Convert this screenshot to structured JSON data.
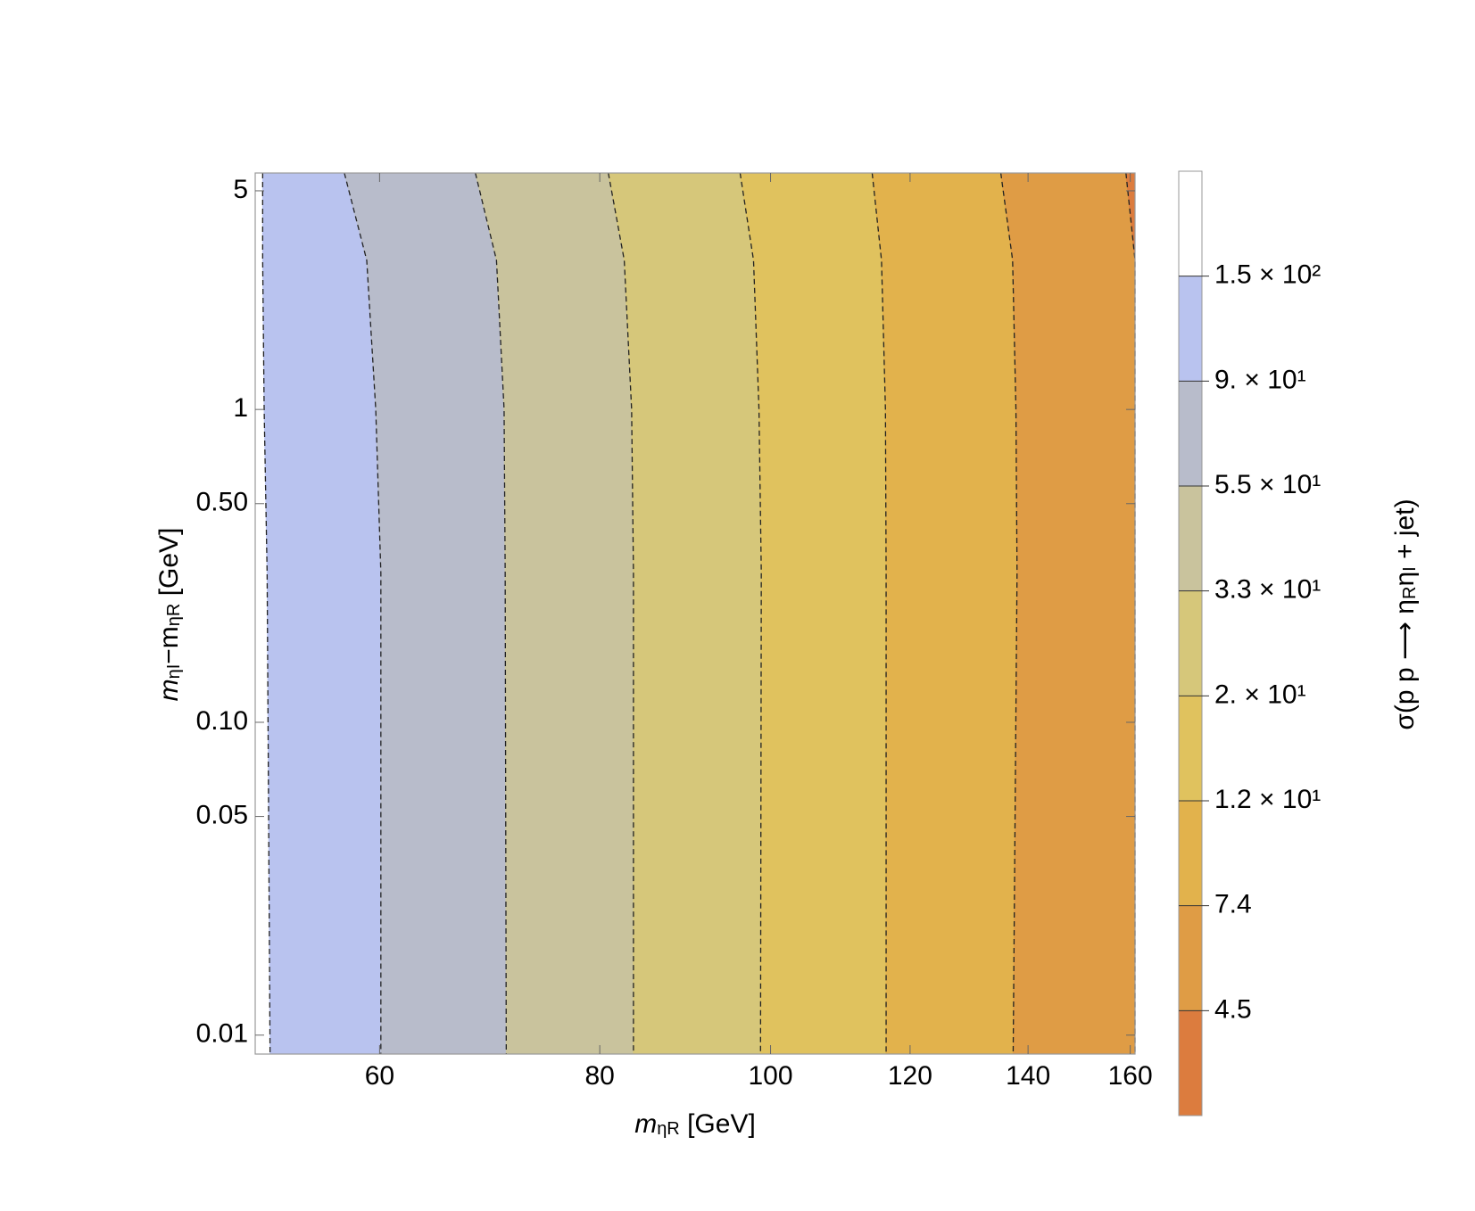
{
  "chart_data": {
    "type": "contour",
    "x_label": [
      "m",
      "ηR",
      " [GeV]"
    ],
    "y_label": [
      "m",
      "ηI",
      "−m",
      "ηR",
      " [GeV]"
    ],
    "colorbar_label": [
      "σ(p p ⟶ η",
      "R",
      "η",
      "I",
      " + jet)"
    ],
    "xscale": "log",
    "yscale": "log",
    "xlim": [
      51,
      161
    ],
    "ylim": [
      0.0087,
      5.7
    ],
    "xticks": [
      60,
      80,
      100,
      120,
      140,
      160
    ],
    "yticks": [
      5,
      1,
      {
        "value": 0.5,
        "label": "0.50"
      },
      {
        "value": 0.1,
        "label": "0.10"
      },
      0.05,
      0.01
    ],
    "contour_y": [
      5.7,
      3,
      1,
      0.3,
      0.0087
    ],
    "contours": [
      {
        "x": [
          51.5,
          51.5,
          51.6,
          51.8,
          52.0
        ]
      },
      {
        "x": [
          57.3,
          59.0,
          59.7,
          60.1,
          60.1
        ]
      },
      {
        "x": [
          68.0,
          69.9,
          70.6,
          70.7,
          70.8
        ]
      },
      {
        "x": [
          80.9,
          82.6,
          83.4,
          83.6,
          83.6
        ]
      },
      {
        "x": [
          96.1,
          97.8,
          98.5,
          98.8,
          98.7
        ]
      },
      {
        "x": [
          114.2,
          115.6,
          116.2,
          116.3,
          116.3
        ]
      },
      {
        "x": [
          135.1,
          137.2,
          137.8,
          138.0,
          137.3
        ]
      },
      {
        "x": [
          159.1,
          161,
          161,
          161,
          161
        ]
      }
    ],
    "colors": [
      "#ffffff",
      "#b9c3ef",
      "#b8bccb",
      "#c9c39d",
      "#d6c77a",
      "#e0c25e",
      "#e2b24c",
      "#df9c45",
      "#dc7c3e"
    ],
    "colorbar_ticks": [
      {
        "value": 150,
        "label": "1.5 × 10²"
      },
      {
        "value": 90,
        "label": "9. × 10¹"
      },
      {
        "value": 55,
        "label": "5.5 × 10¹"
      },
      {
        "value": 33,
        "label": "3.3 × 10¹"
      },
      {
        "value": 20,
        "label": "2. × 10¹"
      },
      {
        "value": 12,
        "label": "1.2 × 10¹"
      },
      7.4,
      4.5
    ]
  }
}
